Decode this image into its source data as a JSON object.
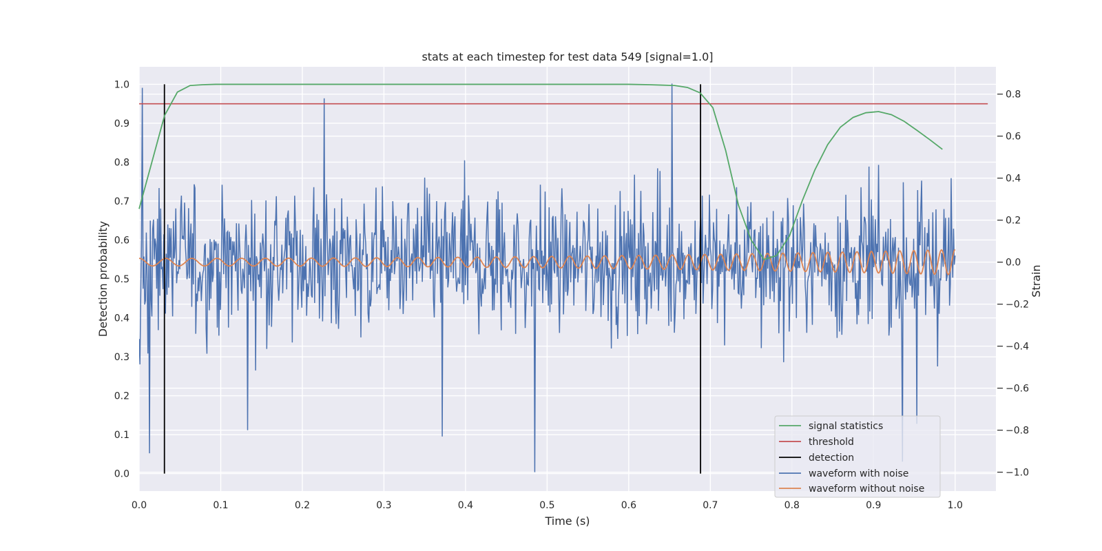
{
  "chart_data": {
    "type": "line",
    "title": "stats at each timestep for test data 549 [signal=1.0]",
    "xlabel": "Time (s)",
    "ylabel_left": "Detection probability",
    "ylabel_right": "Strain",
    "xlim": [
      0.0,
      1.05
    ],
    "ylim_left": [
      -0.045,
      1.045
    ],
    "ylim_right": [
      -1.09,
      0.93
    ],
    "x_ticks": [
      "0.0",
      "0.1",
      "0.2",
      "0.3",
      "0.4",
      "0.5",
      "0.6",
      "0.7",
      "0.8",
      "0.9",
      "1.0"
    ],
    "y_ticks_left": [
      "0.0",
      "0.1",
      "0.2",
      "0.3",
      "0.4",
      "0.5",
      "0.6",
      "0.7",
      "0.8",
      "0.9",
      "1.0"
    ],
    "y_ticks_right": [
      "−1.0",
      "−0.8",
      "−0.6",
      "−0.4",
      "−0.2",
      "0.0",
      "0.2",
      "0.4",
      "0.6",
      "0.8"
    ],
    "grid": true,
    "legend_position": "lower-right",
    "signal_statistics": {
      "name": "signal statistics",
      "color": "#55a868",
      "axis": "left",
      "x": [
        0.0,
        0.0156,
        0.0312,
        0.0469,
        0.0625,
        0.0781,
        0.0938,
        0.1094,
        0.125,
        0.2,
        0.3,
        0.4,
        0.5,
        0.6,
        0.625,
        0.6406,
        0.6562,
        0.6719,
        0.6875,
        0.7031,
        0.7188,
        0.7344,
        0.75,
        0.7656,
        0.7812,
        0.7969,
        0.8125,
        0.8281,
        0.8438,
        0.8594,
        0.875,
        0.8906,
        0.9062,
        0.9219,
        0.9375,
        0.9531,
        0.9688,
        0.9844
      ],
      "y": [
        0.68,
        0.8,
        0.92,
        0.98,
        0.997,
        0.999,
        1.0,
        1.0,
        1.0,
        1.0,
        1.0,
        1.0,
        1.0,
        1.0,
        0.999,
        0.998,
        0.997,
        0.992,
        0.978,
        0.94,
        0.83,
        0.69,
        0.6,
        0.55,
        0.56,
        0.61,
        0.7,
        0.78,
        0.845,
        0.89,
        0.915,
        0.927,
        0.93,
        0.922,
        0.905,
        0.882,
        0.858,
        0.833
      ]
    },
    "threshold": {
      "name": "threshold",
      "color": "#c44e52",
      "axis": "left",
      "value": 0.95,
      "x_range": [
        0.0,
        1.04
      ]
    },
    "detections": {
      "name": "detection",
      "color": "#000000",
      "axis": "left",
      "x": [
        0.031,
        0.688
      ],
      "y_range": [
        0.0,
        1.0
      ]
    },
    "waveform_with_noise": {
      "name": "waveform with noise",
      "color": "#4c72b0",
      "axis": "right",
      "x_range": [
        0.0,
        1.0
      ],
      "points": 1024,
      "std": 0.29,
      "min": -1.0,
      "max": 0.85,
      "note_spikes": [
        {
          "x": 0.004,
          "y": 0.83
        },
        {
          "x": 0.013,
          "y": -0.91
        },
        {
          "x": 0.133,
          "y": -0.8
        },
        {
          "x": 0.227,
          "y": 0.78
        },
        {
          "x": 0.371,
          "y": -0.83
        },
        {
          "x": 0.485,
          "y": -1.0
        },
        {
          "x": 0.653,
          "y": 0.85
        },
        {
          "x": 0.935,
          "y": -0.95
        },
        {
          "x": 0.953,
          "y": -0.77
        }
      ]
    },
    "waveform_without_noise": {
      "name": "waveform without noise",
      "color": "#dd8452",
      "axis": "right",
      "x_range": [
        0.0,
        1.0
      ],
      "amplitude_start": 0.018,
      "amplitude_end": 0.06,
      "cycles_start_per_s": 30,
      "cycles_end_per_s": 60
    },
    "legend": [
      "signal statistics",
      "threshold",
      "detection",
      "waveform with noise",
      "waveform without noise"
    ]
  }
}
